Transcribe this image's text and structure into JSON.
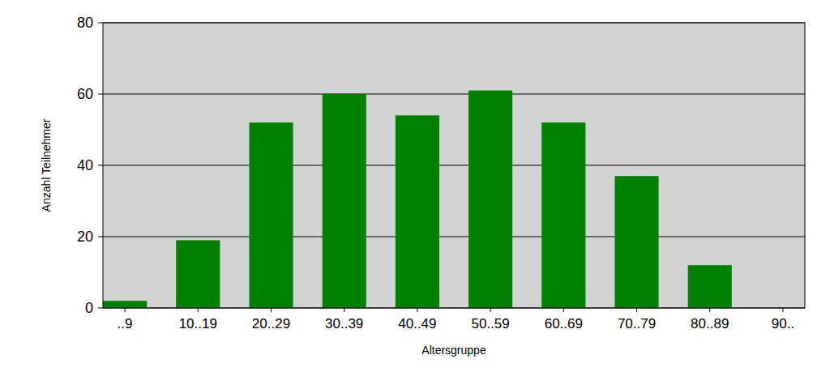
{
  "chart_data": {
    "type": "bar",
    "x_label": "Altersgruppe",
    "y_label": "Anzahl Teilnehmer",
    "categories": [
      "..9",
      "10..19",
      "20..29",
      "30..39",
      "40..49",
      "50..59",
      "60..69",
      "70..79",
      "80..89",
      "90.."
    ],
    "values": [
      2,
      19,
      52,
      60,
      54,
      61,
      52,
      37,
      12,
      0
    ],
    "color": "#008000",
    "ylim": [
      0,
      80
    ],
    "yticks": [
      0,
      20,
      40,
      60,
      80
    ],
    "grid": true
  }
}
